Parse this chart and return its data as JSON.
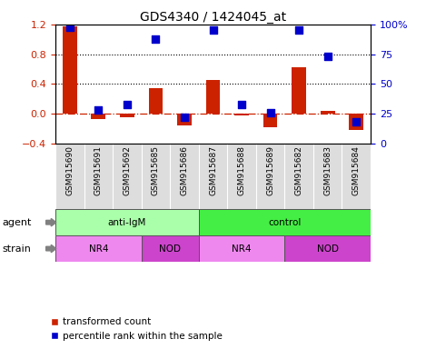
{
  "title": "GDS4340 / 1424045_at",
  "samples": [
    "GSM915690",
    "GSM915691",
    "GSM915692",
    "GSM915685",
    "GSM915686",
    "GSM915687",
    "GSM915688",
    "GSM915689",
    "GSM915682",
    "GSM915683",
    "GSM915684"
  ],
  "transformed_count": [
    1.18,
    -0.07,
    -0.05,
    0.35,
    -0.15,
    0.46,
    -0.02,
    -0.18,
    0.62,
    0.04,
    -0.22
  ],
  "percentile_rank": [
    98,
    28,
    33,
    88,
    22,
    95,
    33,
    26,
    95,
    73,
    18
  ],
  "ylim_left": [
    -0.4,
    1.2
  ],
  "ylim_right": [
    0,
    100
  ],
  "yticks_left": [
    -0.4,
    0.0,
    0.4,
    0.8,
    1.2
  ],
  "yticks_right": [
    0,
    25,
    50,
    75,
    100
  ],
  "hlines": [
    0.4,
    0.8
  ],
  "bar_color": "#cc2200",
  "dot_color": "#0000cc",
  "zero_line_color": "#cc2200",
  "agent_groups": [
    {
      "label": "anti-IgM",
      "start": 0,
      "end": 5,
      "color": "#aaffaa"
    },
    {
      "label": "control",
      "start": 5,
      "end": 11,
      "color": "#44ee44"
    }
  ],
  "strain_groups": [
    {
      "label": "NR4",
      "start": 0,
      "end": 3,
      "color": "#ee88ee"
    },
    {
      "label": "NOD",
      "start": 3,
      "end": 5,
      "color": "#cc44cc"
    },
    {
      "label": "NR4",
      "start": 5,
      "end": 8,
      "color": "#ee88ee"
    },
    {
      "label": "NOD",
      "start": 8,
      "end": 11,
      "color": "#cc44cc"
    }
  ],
  "agent_label": "agent",
  "strain_label": "strain",
  "legend_red": "transformed count",
  "legend_blue": "percentile rank within the sample",
  "tick_color_left": "#cc2200",
  "tick_color_right": "#0000cc",
  "bar_width": 0.5,
  "dot_size": 30
}
